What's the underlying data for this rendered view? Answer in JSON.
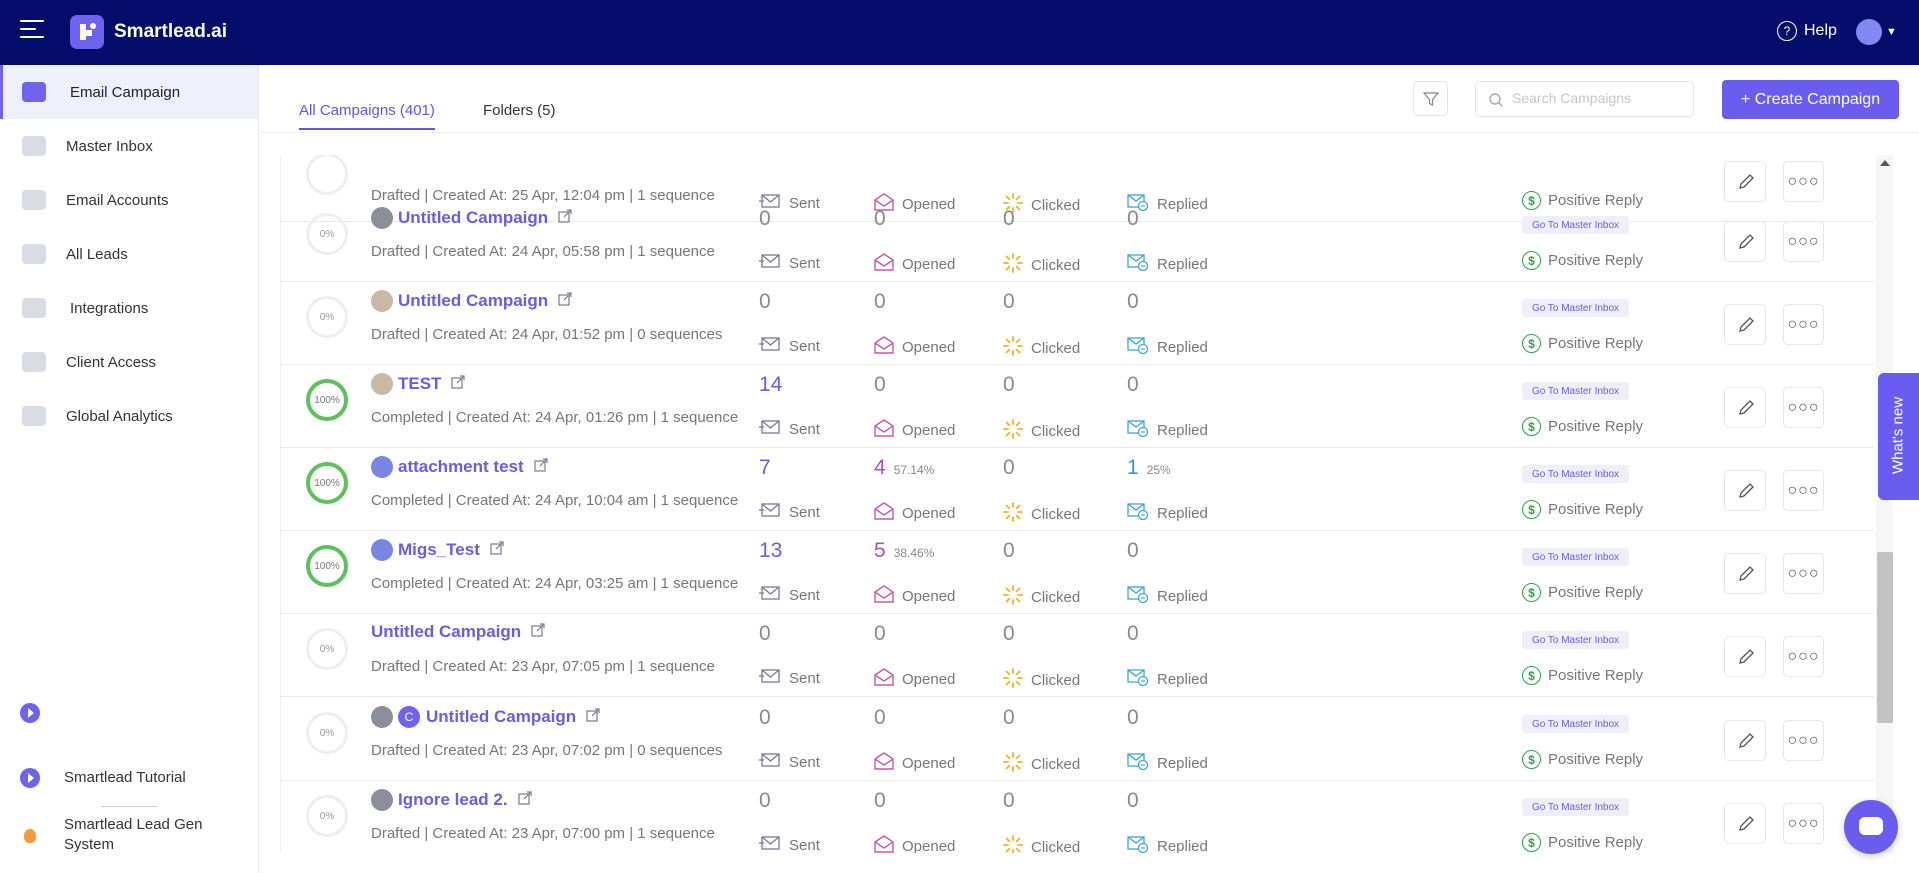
{
  "app": {
    "name": "Smartlead.ai"
  },
  "header": {
    "help_label": "Help"
  },
  "sidebar": {
    "items": [
      {
        "label": "Email Campaign",
        "icon": "megaphone-icon",
        "active": true
      },
      {
        "label": "Master Inbox",
        "icon": "inbox-icon"
      },
      {
        "label": "Email Accounts",
        "icon": "envelope-icon"
      },
      {
        "label": "All Leads",
        "icon": "leads-icon"
      },
      {
        "label": "Integrations",
        "icon": "puzzle-icon"
      },
      {
        "label": "Client Access",
        "icon": "bolt-icon"
      },
      {
        "label": "Global Analytics",
        "icon": "bar-chart-icon"
      }
    ],
    "bottom": [
      {
        "label": "Smartlead Tutorial",
        "icon": "play-icon"
      },
      {
        "label": "Smartlead Lead Gen System",
        "icon": "fire-icon"
      }
    ]
  },
  "tabs": [
    {
      "label": "All Campaigns (401)",
      "active": true
    },
    {
      "label": "Folders (5)",
      "active": false
    }
  ],
  "search": {
    "placeholder": "Search Campaigns"
  },
  "create_button": "+ Create Campaign",
  "whats_new": "What's new",
  "labels": {
    "sent": "Sent",
    "opened": "Opened",
    "clicked": "Clicked",
    "replied": "Replied",
    "positive_reply": "Positive Reply",
    "goto_inbox": "Go To Master Inbox"
  },
  "rows": [
    {
      "progress": "",
      "name": "",
      "sub": "Drafted | Created At: 25 Apr, 12:04 pm | 1 sequence",
      "sent": "",
      "opened": "",
      "opened_pct": "",
      "clicked": "",
      "replied": "",
      "replied_pct": ""
    },
    {
      "progress": "0%",
      "name": "Untitled Campaign",
      "sub": "Drafted | Created At: 24 Apr, 05:58 pm | 1 sequence",
      "sent": "0",
      "opened": "0",
      "opened_pct": "",
      "clicked": "0",
      "replied": "0",
      "replied_pct": ""
    },
    {
      "progress": "0%",
      "name": "Untitled Campaign",
      "sub": "Drafted | Created At: 24 Apr, 01:52 pm | 0 sequences",
      "sent": "0",
      "opened": "0",
      "opened_pct": "",
      "clicked": "0",
      "replied": "0",
      "replied_pct": ""
    },
    {
      "progress": "100%",
      "name": "TEST",
      "sub": "Completed | Created At: 24 Apr, 01:26 pm | 1 sequence",
      "sent": "14",
      "opened": "0",
      "opened_pct": "",
      "clicked": "0",
      "replied": "0",
      "replied_pct": ""
    },
    {
      "progress": "100%",
      "name": "attachment test",
      "sub": "Completed | Created At: 24 Apr, 10:04 am | 1 sequence",
      "sent": "7",
      "opened": "4",
      "opened_pct": "57.14%",
      "clicked": "0",
      "replied": "1",
      "replied_pct": "25%"
    },
    {
      "progress": "100%",
      "name": "Migs_Test",
      "sub": "Completed | Created At: 24 Apr, 03:25 am | 1 sequence",
      "sent": "13",
      "opened": "5",
      "opened_pct": "38.46%",
      "clicked": "0",
      "replied": "0",
      "replied_pct": ""
    },
    {
      "progress": "0%",
      "name": "Untitled Campaign",
      "sub": "Drafted | Created At: 23 Apr, 07:05 pm | 1 sequence",
      "sent": "0",
      "opened": "0",
      "opened_pct": "",
      "clicked": "0",
      "replied": "0",
      "replied_pct": ""
    },
    {
      "progress": "0%",
      "name": "Untitled Campaign",
      "avatar_letter": "C",
      "sub": "Drafted | Created At: 23 Apr, 07:02 pm | 0 sequences",
      "sent": "0",
      "opened": "0",
      "opened_pct": "",
      "clicked": "0",
      "replied": "0",
      "replied_pct": ""
    },
    {
      "progress": "0%",
      "name": "Ignore lead 2.",
      "sub": "Drafted | Created At: 23 Apr, 07:00 pm | 1 sequence",
      "sent": "0",
      "opened": "0",
      "opened_pct": "",
      "clicked": "0",
      "replied": "0",
      "replied_pct": ""
    }
  ],
  "colors": {
    "topbar": "#050d6b",
    "accent": "#6b5cf0",
    "progress_done": "#5ec15e"
  }
}
